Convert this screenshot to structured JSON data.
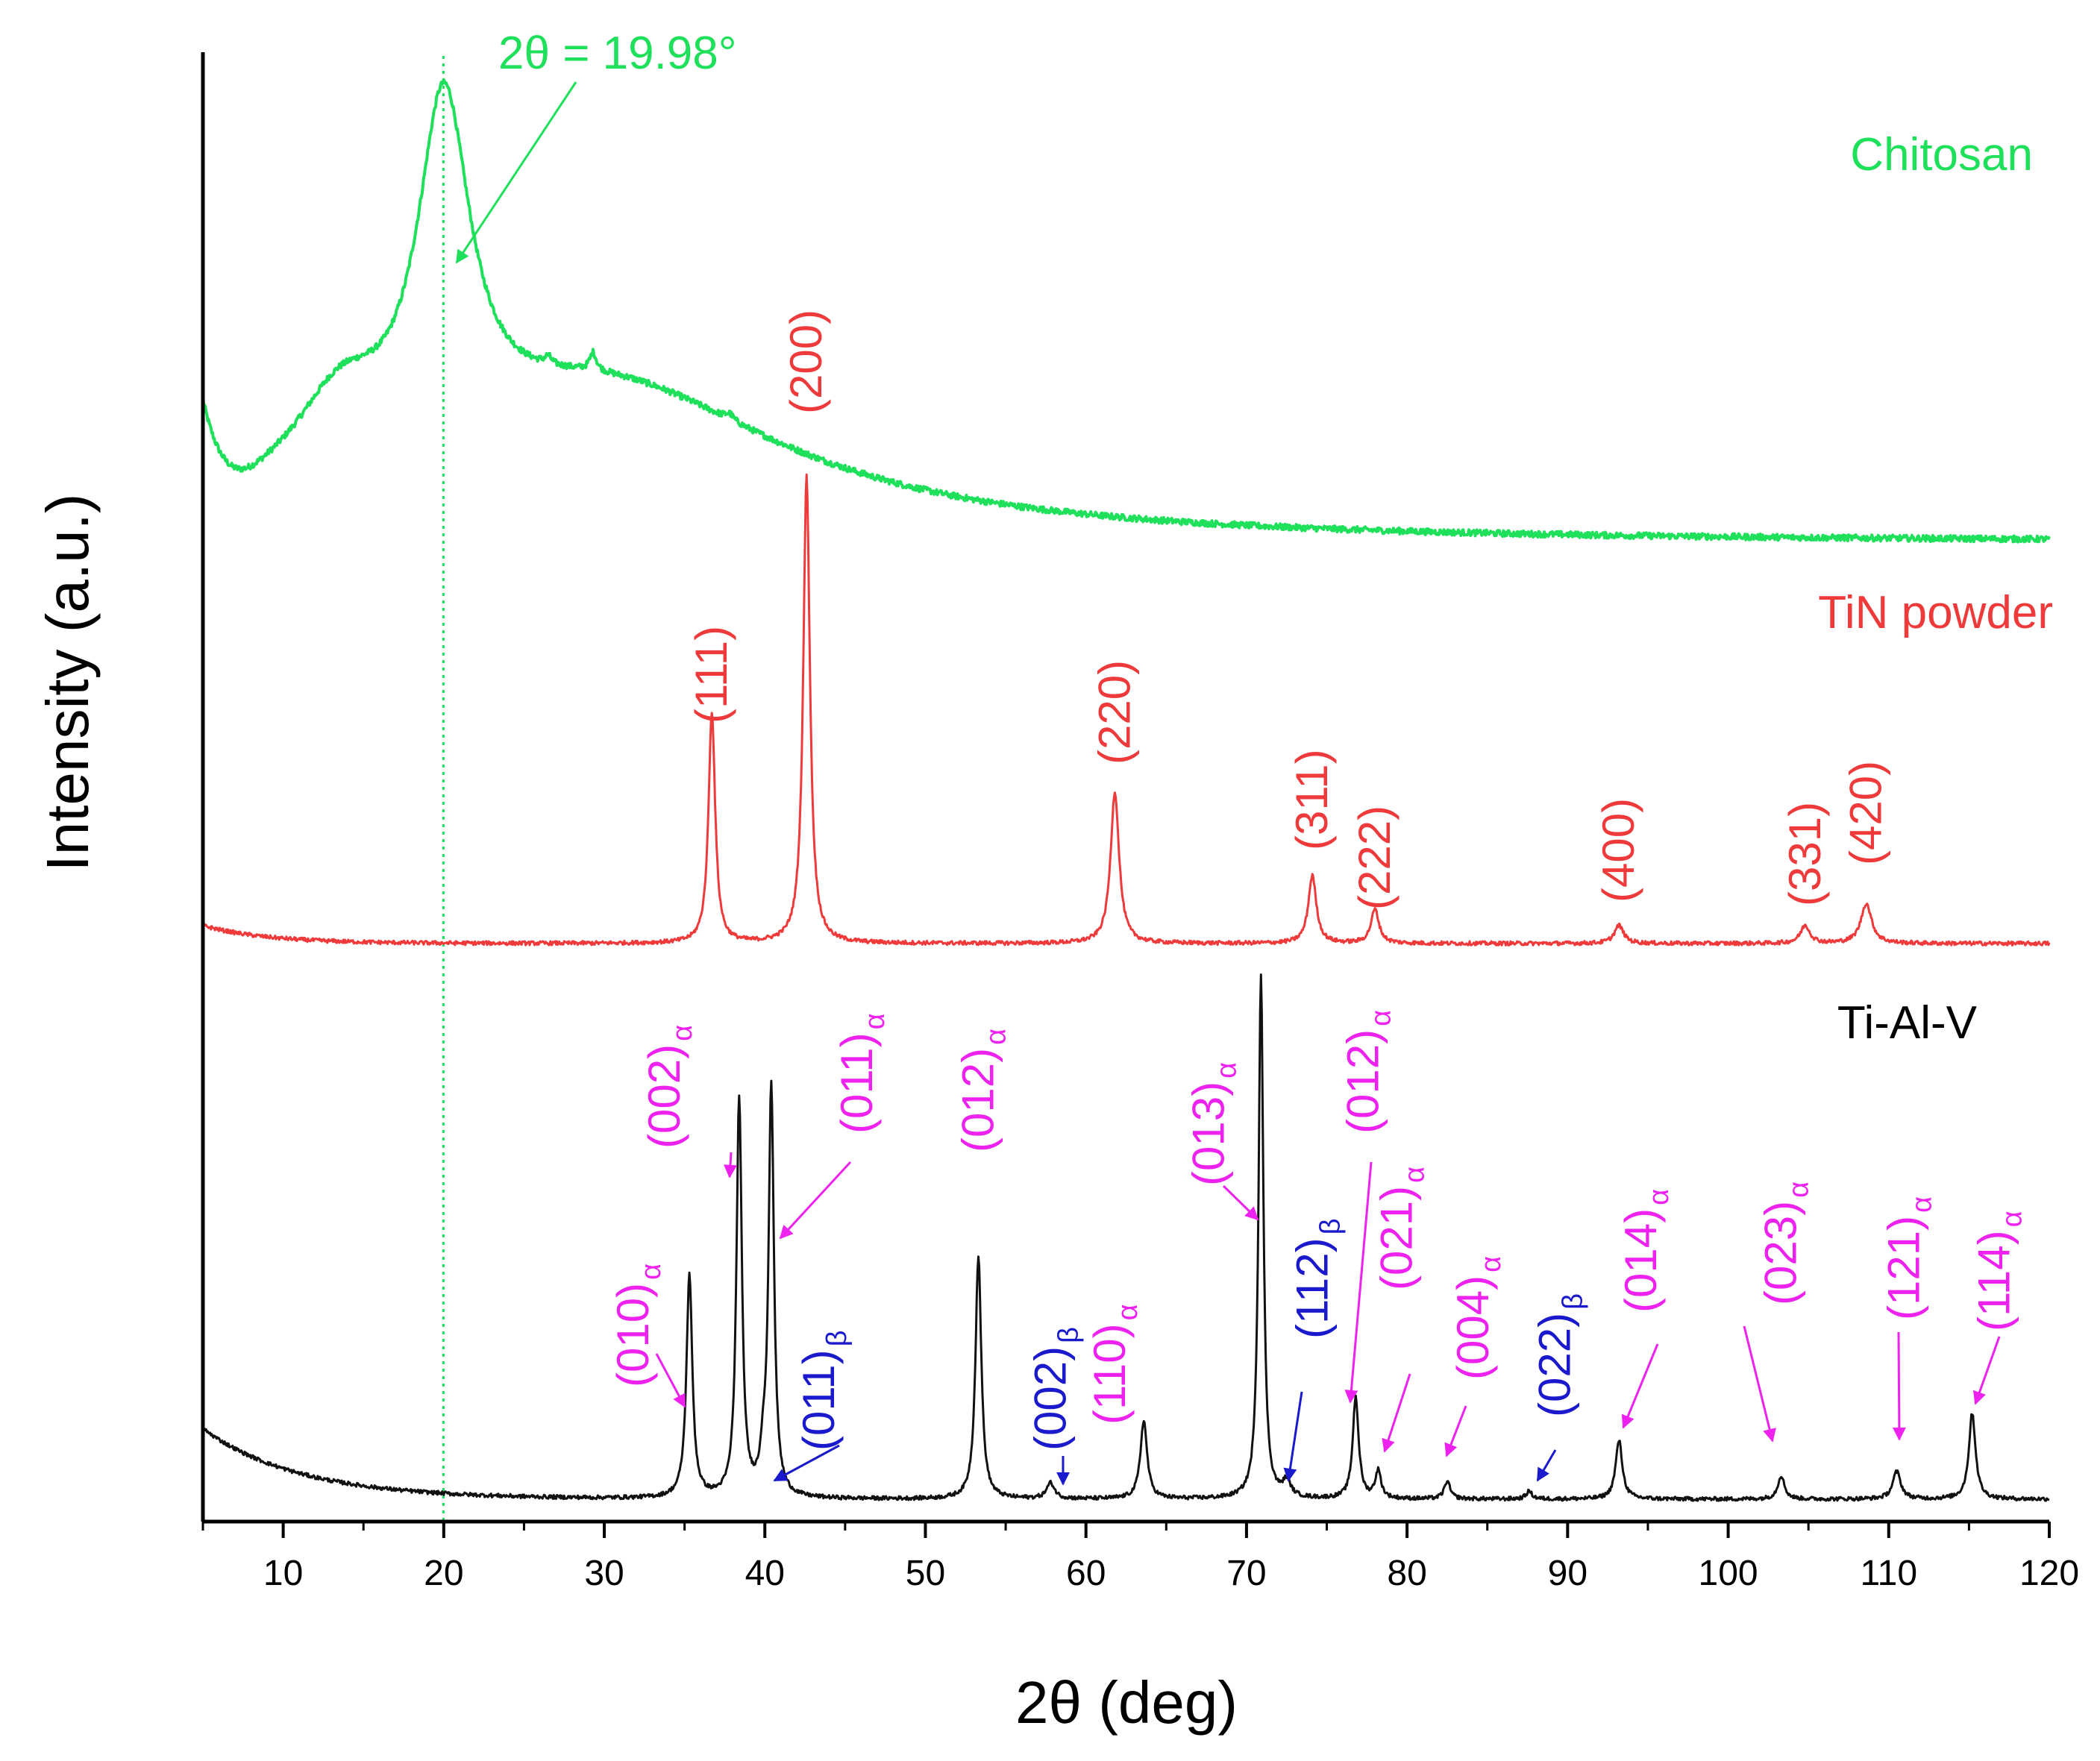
{
  "chart_data": {
    "type": "line",
    "title": "",
    "xlabel": "2θ (deg)",
    "ylabel": "Intensity (a.u.)",
    "xlim": [
      5,
      120
    ],
    "xticks": [
      10,
      20,
      30,
      40,
      50,
      60,
      70,
      80,
      90,
      100,
      110,
      120
    ],
    "y_ticks_shown": false,
    "grid": false,
    "legend": "inline labels at right",
    "reference_line": {
      "x": 19.98,
      "color": "#1ee05a",
      "style": "dotted"
    },
    "annotation": {
      "text": "2θ = 19.98°",
      "points_to_x": 19.98,
      "color": "#1ee05a"
    },
    "series": [
      {
        "name": "Chitosan",
        "color": "#1ee05a",
        "baseline_y": 0.0,
        "kind": "broad",
        "broad_peaks": [
          {
            "x": 20.0,
            "height": 0.66,
            "width": 2.0
          },
          {
            "x": 13.5,
            "height": 0.16,
            "width": 3.5
          },
          {
            "x": 30.0,
            "height": 0.3,
            "width": 14.0
          },
          {
            "x": 26.5,
            "height": 0.015,
            "width": 0.25
          },
          {
            "x": 29.3,
            "height": 0.035,
            "width": 0.25
          },
          {
            "x": 37.8,
            "height": 0.012,
            "width": 0.3
          }
        ],
        "offset": 0.94,
        "background": {
          "start": 0.18,
          "decay": 30
        }
      },
      {
        "name": "TiN powder",
        "color": "#ee3a3a",
        "offset": 0.52,
        "kind": "sharp",
        "background": {
          "start": 0.045,
          "decay": 4
        },
        "peaks": [
          {
            "x": 36.7,
            "height": 0.58,
            "width": 0.25,
            "label": "(111)"
          },
          {
            "x": 42.6,
            "height": 1.17,
            "width": 0.25,
            "label": "(200)"
          },
          {
            "x": 61.8,
            "height": 0.38,
            "width": 0.32,
            "label": "(220)"
          },
          {
            "x": 74.1,
            "height": 0.17,
            "width": 0.3,
            "label": "(311)"
          },
          {
            "x": 78.0,
            "height": 0.085,
            "width": 0.3,
            "label": "(222)"
          },
          {
            "x": 93.2,
            "height": 0.045,
            "width": 0.35,
            "label": "(400)"
          },
          {
            "x": 104.8,
            "height": 0.045,
            "width": 0.35,
            "label": "(331)"
          },
          {
            "x": 108.6,
            "height": 0.1,
            "width": 0.4,
            "label": "(420)"
          }
        ]
      },
      {
        "name": "Ti-Al-V",
        "color": "#111111",
        "offset": 0.0,
        "kind": "sharp",
        "background": {
          "start": 0.18,
          "decay": 6
        },
        "peaks": [
          {
            "x": 35.3,
            "height": 0.57,
            "width": 0.22,
            "label": "(010)",
            "phase": "α",
            "label_color": "#ee22ee"
          },
          {
            "x": 38.4,
            "height": 1.02,
            "width": 0.2,
            "label": "(002)",
            "phase": "α",
            "label_color": "#ee22ee"
          },
          {
            "x": 39.9,
            "height": 0.08,
            "width": 0.2,
            "label": "(011)",
            "phase": "β",
            "label_color": "#1a1acc"
          },
          {
            "x": 40.4,
            "height": 1.05,
            "width": 0.2,
            "label": "(011)",
            "phase": "α",
            "label_color": "#ee22ee"
          },
          {
            "x": 53.3,
            "height": 0.62,
            "width": 0.22,
            "label": "(012)",
            "phase": "α",
            "label_color": "#ee22ee"
          },
          {
            "x": 57.8,
            "height": 0.04,
            "width": 0.3,
            "label": "(002)",
            "phase": "β",
            "label_color": "#1a1acc"
          },
          {
            "x": 63.6,
            "height": 0.2,
            "width": 0.25,
            "label": "(110)",
            "phase": "α",
            "label_color": "#ee22ee"
          },
          {
            "x": 70.9,
            "height": 1.34,
            "width": 0.18,
            "label": "(013)",
            "phase": "α",
            "label_color": "#ee22ee"
          },
          {
            "x": 72.5,
            "height": 0.04,
            "width": 0.3,
            "label": "(112)",
            "phase": "β",
            "label_color": "#1a1acc"
          },
          {
            "x": 76.8,
            "height": 0.26,
            "width": 0.22,
            "label": "(012)",
            "phase": "α",
            "label_color": "#ee22ee"
          },
          {
            "x": 78.2,
            "height": 0.07,
            "width": 0.22,
            "label": "(021)",
            "phase": "α",
            "label_color": "#ee22ee"
          },
          {
            "x": 82.5,
            "height": 0.045,
            "width": 0.22,
            "label": "(004)",
            "phase": "α",
            "label_color": "#ee22ee"
          },
          {
            "x": 87.6,
            "height": 0.02,
            "width": 0.22,
            "label": "(022)",
            "phase": "β",
            "label_color": "#1a1acc"
          },
          {
            "x": 93.2,
            "height": 0.15,
            "width": 0.25,
            "label": "(014)",
            "phase": "α",
            "label_color": "#ee22ee"
          },
          {
            "x": 103.3,
            "height": 0.06,
            "width": 0.25,
            "label": "(023)",
            "phase": "α",
            "label_color": "#ee22ee"
          },
          {
            "x": 110.5,
            "height": 0.07,
            "width": 0.3,
            "label": "(121)",
            "phase": "α",
            "label_color": "#ee22ee"
          },
          {
            "x": 115.2,
            "height": 0.22,
            "width": 0.25,
            "label": "(114)",
            "phase": "α",
            "label_color": "#ee22ee"
          }
        ]
      }
    ]
  }
}
